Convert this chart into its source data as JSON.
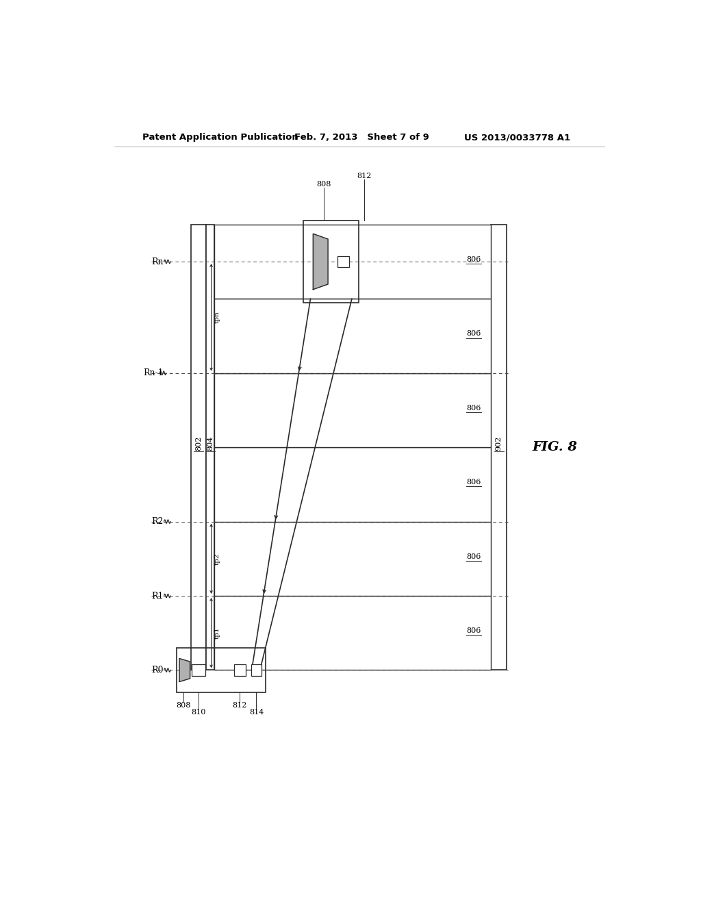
{
  "patent_header_left": "Patent Application Publication",
  "patent_header_mid": "Feb. 7, 2013   Sheet 7 of 9",
  "patent_header_right": "US 2013/0033778 A1",
  "bg_color": "#ffffff",
  "fig_label": "FIG. 8",
  "line_color": "#2a2a2a",
  "dashed_color": "#444444",
  "gray_fill": "#b0b0b0"
}
